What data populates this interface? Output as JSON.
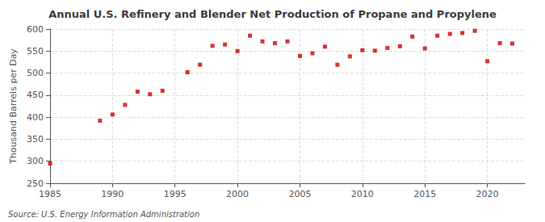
{
  "chart_data": {
    "type": "scatter",
    "title": "Annual U.S. Refinery and Blender Net Production of Propane and Propylene",
    "ylabel": "Thousand Barrels per Day",
    "annotation": "Source: U.S. Energy Information Administration",
    "color": "#cc0000",
    "marker": "square",
    "grid": true,
    "xlim": [
      1985,
      2023
    ],
    "ylim": [
      250,
      600
    ],
    "xticks": [
      1985,
      1990,
      1995,
      2000,
      2005,
      2010,
      2015,
      2020
    ],
    "yticks": [
      250,
      300,
      350,
      400,
      450,
      500,
      550,
      600
    ],
    "x": [
      1985,
      1989,
      1990,
      1991,
      1992,
      1993,
      1994,
      1996,
      1997,
      1998,
      1999,
      2000,
      2001,
      2002,
      2003,
      2004,
      2005,
      2006,
      2007,
      2008,
      2009,
      2010,
      2011,
      2012,
      2013,
      2014,
      2015,
      2016,
      2017,
      2018,
      2019,
      2020,
      2021,
      2022
    ],
    "values": [
      295,
      392,
      406,
      428,
      458,
      452,
      460,
      502,
      519,
      562,
      565,
      550,
      585,
      572,
      568,
      572,
      539,
      545,
      560,
      519,
      538,
      552,
      551,
      557,
      561,
      583,
      556,
      585,
      589,
      591,
      596,
      527,
      568,
      567
    ]
  }
}
